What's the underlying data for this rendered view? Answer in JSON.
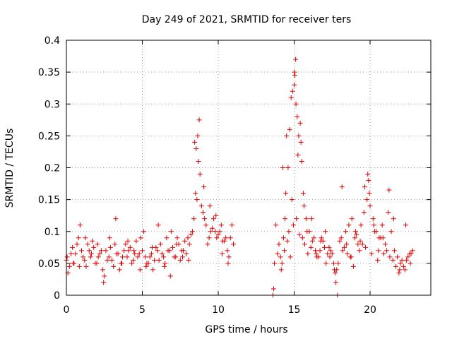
{
  "chart_data": {
    "type": "scatter",
    "title": "Day 249 of 2021, SRMTID for receiver ters",
    "xlabel": "GPS time / hours",
    "ylabel": "SRMTID / TECUs",
    "xlim": [
      0,
      24
    ],
    "ylim": [
      0,
      0.4
    ],
    "xticks": [
      0,
      5,
      10,
      15,
      20
    ],
    "xtick_labels": [
      "0",
      "5",
      "10",
      "15",
      "20"
    ],
    "yticks": [
      0,
      0.05,
      0.1,
      0.15,
      0.2,
      0.25,
      0.3,
      0.35,
      0.4
    ],
    "ytick_labels": [
      "0",
      "0.05",
      "0.1",
      "0.15",
      "0.2",
      "0.25",
      "0.3",
      "0.35",
      "0.4"
    ],
    "grid": true,
    "marker": "+",
    "color": "#e00000",
    "series": [
      {
        "name": "SRMTID",
        "x": [
          0.0,
          0.2,
          0.4,
          0.6,
          0.8,
          1.0,
          1.2,
          1.4,
          1.6,
          1.8,
          2.0,
          2.2,
          2.4,
          2.6,
          2.8,
          3.0,
          3.2,
          3.4,
          3.6,
          3.8,
          4.0,
          4.2,
          4.4,
          4.6,
          4.8,
          5.0,
          5.2,
          5.4,
          5.6,
          5.8,
          6.0,
          6.2,
          6.4,
          6.6,
          6.8,
          7.0,
          7.2,
          7.4,
          7.6,
          7.8,
          8.0,
          8.2,
          8.4,
          8.5,
          8.6,
          8.7,
          8.8,
          9.0,
          9.2,
          9.4,
          9.6,
          9.8,
          10.0,
          10.2,
          10.4,
          10.6,
          10.8,
          11.0,
          0.1,
          0.3,
          0.5,
          0.7,
          0.9,
          1.1,
          1.3,
          1.5,
          1.7,
          1.9,
          2.1,
          2.3,
          2.5,
          2.7,
          2.9,
          3.1,
          3.3,
          3.5,
          3.7,
          3.9,
          4.1,
          4.3,
          4.5,
          4.7,
          4.9,
          5.1,
          5.3,
          5.5,
          5.7,
          5.9,
          6.1,
          6.3,
          6.5,
          6.7,
          6.9,
          7.1,
          7.3,
          7.5,
          7.7,
          7.9,
          8.1,
          8.3,
          8.9,
          9.1,
          9.3,
          9.5,
          9.7,
          9.9,
          10.1,
          10.3,
          10.5,
          10.7,
          10.9,
          0.05,
          0.45,
          0.85,
          1.25,
          1.65,
          2.05,
          2.45,
          2.85,
          3.25,
          3.65,
          4.05,
          4.45,
          4.85,
          5.25,
          5.65,
          6.05,
          6.45,
          6.85,
          7.25,
          7.65,
          8.05,
          8.45,
          8.55,
          8.65,
          8.75,
          9.05,
          9.45,
          9.85,
          10.25,
          10.65,
          13.6,
          13.8,
          14.0,
          14.1,
          14.2,
          14.3,
          14.4,
          14.5,
          14.6,
          14.7,
          14.8,
          14.9,
          15.0,
          15.05,
          15.1,
          15.2,
          15.3,
          15.4,
          15.5,
          15.6,
          15.8,
          16.0,
          16.2,
          16.4,
          16.6,
          16.8,
          17.0,
          17.2,
          17.4,
          17.6,
          17.8,
          18.0,
          18.2,
          18.4,
          18.6,
          18.8,
          19.0,
          19.2,
          19.4,
          19.6,
          19.8,
          19.9,
          20.0,
          20.2,
          20.4,
          20.6,
          20.8,
          21.0,
          21.2,
          21.4,
          21.6,
          21.8,
          22.0,
          22.2,
          22.4,
          22.6,
          22.8,
          13.7,
          13.9,
          14.15,
          14.35,
          14.55,
          14.75,
          14.95,
          15.15,
          15.35,
          15.55,
          15.7,
          15.9,
          16.1,
          16.3,
          16.5,
          16.7,
          16.9,
          17.1,
          17.3,
          17.5,
          17.7,
          17.9,
          18.1,
          18.3,
          18.5,
          18.7,
          18.9,
          19.1,
          19.3,
          19.5,
          19.7,
          20.1,
          20.3,
          20.5,
          20.7,
          20.9,
          21.1,
          21.3,
          21.5,
          21.7,
          21.9,
          22.1,
          22.3,
          22.5,
          22.7,
          14.25,
          14.45,
          14.65,
          14.85,
          15.02,
          15.12,
          15.25,
          15.45,
          15.65,
          15.85,
          16.15,
          16.45,
          16.75,
          17.05,
          17.35,
          17.65,
          17.75,
          18.15,
          18.45,
          18.75,
          19.05,
          19.35,
          19.65,
          19.85,
          19.95,
          20.25,
          20.55,
          20.85,
          21.25,
          21.55,
          21.95,
          22.35,
          22.65,
          13.65,
          17.85
        ],
        "y": [
          0.055,
          0.045,
          0.075,
          0.065,
          0.09,
          0.07,
          0.055,
          0.08,
          0.06,
          0.075,
          0.05,
          0.065,
          0.04,
          0.07,
          0.06,
          0.055,
          0.08,
          0.065,
          0.05,
          0.07,
          0.06,
          0.075,
          0.055,
          0.085,
          0.065,
          0.07,
          0.06,
          0.05,
          0.065,
          0.055,
          0.07,
          0.08,
          0.06,
          0.09,
          0.07,
          0.075,
          0.06,
          0.08,
          0.07,
          0.085,
          0.09,
          0.095,
          0.12,
          0.16,
          0.15,
          0.21,
          0.19,
          0.13,
          0.11,
          0.09,
          0.105,
          0.1,
          0.095,
          0.11,
          0.085,
          0.07,
          0.09,
          0.08,
          0.035,
          0.065,
          0.05,
          0.08,
          0.11,
          0.06,
          0.045,
          0.07,
          0.085,
          0.05,
          0.06,
          0.07,
          0.03,
          0.055,
          0.075,
          0.045,
          0.065,
          0.04,
          0.06,
          0.08,
          0.07,
          0.05,
          0.065,
          0.06,
          0.09,
          0.1,
          0.05,
          0.06,
          0.04,
          0.075,
          0.055,
          0.065,
          0.05,
          0.07,
          0.1,
          0.06,
          0.09,
          0.055,
          0.07,
          0.065,
          0.08,
          0.1,
          0.14,
          0.12,
          0.08,
          0.1,
          0.12,
          0.09,
          0.1,
          0.085,
          0.09,
          0.06,
          0.11,
          0.06,
          0.05,
          0.045,
          0.09,
          0.065,
          0.08,
          0.02,
          0.09,
          0.12,
          0.05,
          0.085,
          0.07,
          0.04,
          0.045,
          0.075,
          0.11,
          0.045,
          0.03,
          0.08,
          0.06,
          0.055,
          0.24,
          0.23,
          0.25,
          0.275,
          0.17,
          0.14,
          0.125,
          0.065,
          0.05,
          0.0,
          0.11,
          0.08,
          0.06,
          0.05,
          0.09,
          0.12,
          0.25,
          0.2,
          0.26,
          0.31,
          0.32,
          0.33,
          0.345,
          0.37,
          0.28,
          0.25,
          0.27,
          0.21,
          0.16,
          0.12,
          0.1,
          0.085,
          0.07,
          0.06,
          0.09,
          0.075,
          0.065,
          0.07,
          0.05,
          0.04,
          0.085,
          0.07,
          0.1,
          0.11,
          0.12,
          0.09,
          0.08,
          0.11,
          0.13,
          0.15,
          0.18,
          0.14,
          0.12,
          0.1,
          0.09,
          0.11,
          0.08,
          0.13,
          0.1,
          0.07,
          0.06,
          0.05,
          0.045,
          0.055,
          0.065,
          0.07,
          0.05,
          0.065,
          0.04,
          0.07,
          0.085,
          0.06,
          0.11,
          0.12,
          0.095,
          0.09,
          0.08,
          0.065,
          0.075,
          0.09,
          0.06,
          0.07,
          0.085,
          0.05,
          0.075,
          0.065,
          0.035,
          0.05,
          0.09,
          0.075,
          0.065,
          0.06,
          0.045,
          0.095,
          0.07,
          0.08,
          0.075,
          0.065,
          0.1,
          0.055,
          0.09,
          0.065,
          0.07,
          0.06,
          0.055,
          0.045,
          0.035,
          0.055,
          0.04,
          0.06,
          0.065,
          0.2,
          0.16,
          0.1,
          0.15,
          0.35,
          0.3,
          0.22,
          0.24,
          0.14,
          0.1,
          0.12,
          0.065,
          0.085,
          0.1,
          0.06,
          0.04,
          0.02,
          0.17,
          0.08,
          0.06,
          0.1,
          0.085,
          0.17,
          0.19,
          0.16,
          0.11,
          0.07,
          0.09,
          0.165,
          0.12,
          0.04,
          0.11,
          0.05,
          0.01,
          0.0
        ]
      }
    ]
  }
}
